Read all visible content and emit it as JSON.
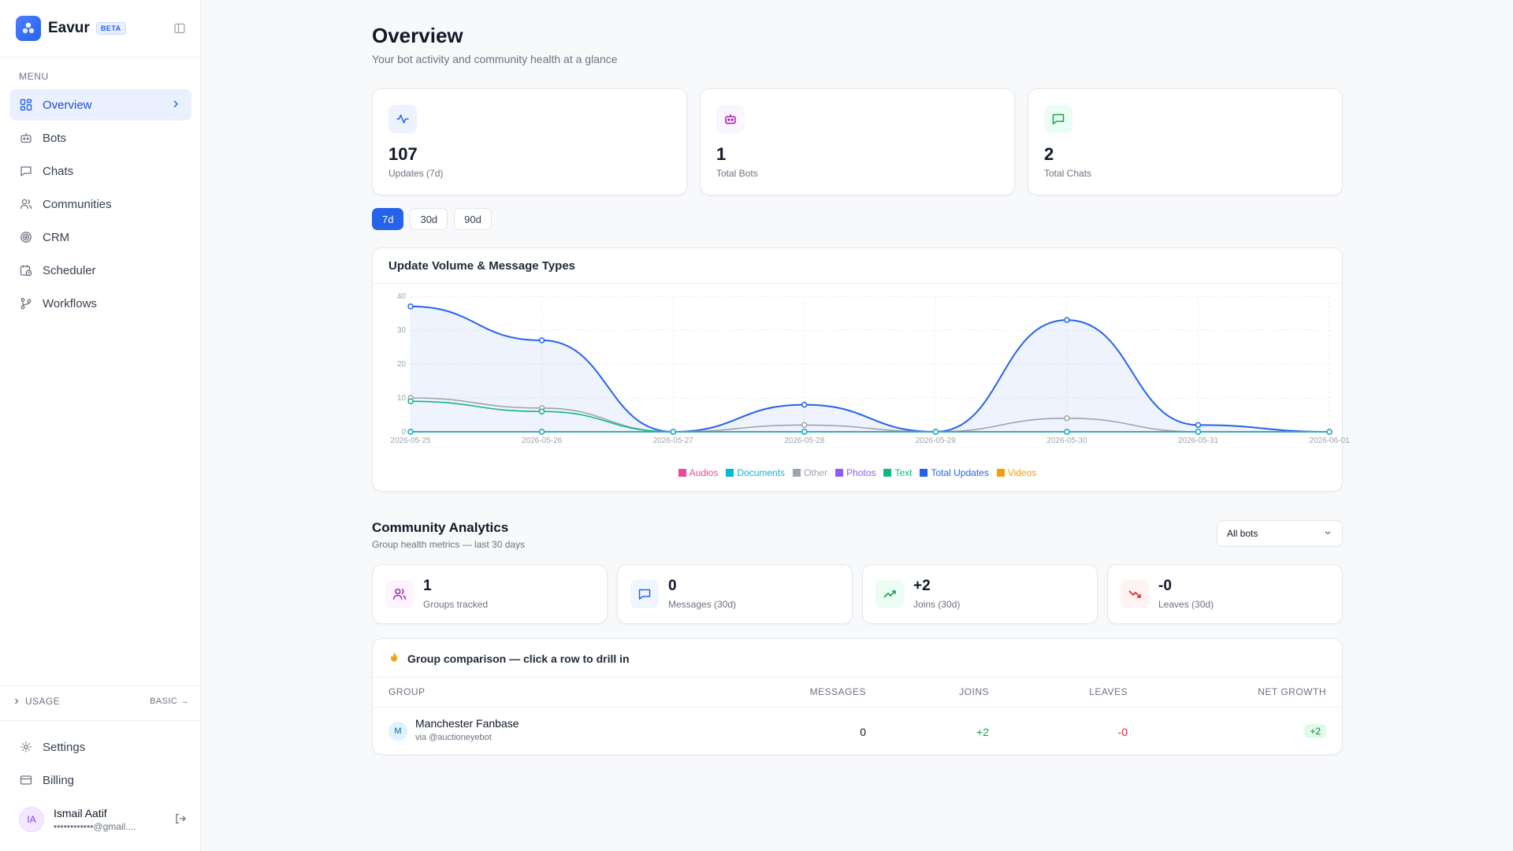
{
  "brand": {
    "name": "Eavur",
    "badge": "BETA"
  },
  "sidebar": {
    "menu_title": "MENU",
    "items": [
      {
        "label": "Overview",
        "icon": "grid-icon",
        "active": true
      },
      {
        "label": "Bots",
        "icon": "bot-icon"
      },
      {
        "label": "Chats",
        "icon": "chat-icon"
      },
      {
        "label": "Communities",
        "icon": "users-icon"
      },
      {
        "label": "CRM",
        "icon": "target-icon"
      },
      {
        "label": "Scheduler",
        "icon": "calendar-clock-icon"
      },
      {
        "label": "Workflows",
        "icon": "workflow-icon"
      }
    ],
    "usage_label": "USAGE",
    "usage_plan": "BASIC →",
    "bottom_items": [
      {
        "label": "Settings",
        "icon": "gear-icon"
      },
      {
        "label": "Billing",
        "icon": "credit-card-icon"
      }
    ],
    "user": {
      "initials": "IA",
      "name": "Ismail Aatif",
      "email": "••••••••••••@gmail...."
    }
  },
  "header": {
    "title": "Overview",
    "subtitle": "Your bot activity and community health at a glance"
  },
  "stats": [
    {
      "value": "107",
      "label": "Updates (7d)",
      "icon": "activity-icon"
    },
    {
      "value": "1",
      "label": "Total Bots",
      "icon": "bot-icon"
    },
    {
      "value": "2",
      "label": "Total Chats",
      "icon": "chat-icon"
    }
  ],
  "ranges": {
    "options": [
      "7d",
      "30d",
      "90d"
    ],
    "selected": "7d"
  },
  "chart_title": "Update Volume & Message Types",
  "chart_data": {
    "type": "line",
    "x": [
      "2026-05-25",
      "2026-05-26",
      "2026-05-27",
      "2026-05-28",
      "2026-05-29",
      "2026-05-30",
      "2026-05-31",
      "2026-06-01"
    ],
    "ylim": [
      0,
      40
    ],
    "yticks": [
      0,
      10,
      20,
      30,
      40
    ],
    "grid": true,
    "legend_position": "bottom",
    "series": [
      {
        "name": "Audios",
        "color": "#ec4899",
        "values": [
          0,
          0,
          0,
          0,
          0,
          0,
          0,
          0
        ]
      },
      {
        "name": "Documents",
        "color": "#06b6d4",
        "values": [
          0,
          0,
          0,
          0,
          0,
          0,
          0,
          0
        ]
      },
      {
        "name": "Other",
        "color": "#9ca3af",
        "values": [
          10,
          7,
          0,
          2,
          0,
          4,
          0,
          0
        ]
      },
      {
        "name": "Photos",
        "color": "#8b5cf6",
        "values": [
          0,
          0,
          0,
          0,
          0,
          0,
          0,
          0
        ]
      },
      {
        "name": "Text",
        "color": "#10b981",
        "values": [
          9,
          6,
          0,
          0,
          0,
          0,
          0,
          0
        ]
      },
      {
        "name": "Total Updates",
        "color": "#2563eb",
        "values": [
          37,
          27,
          0,
          8,
          0,
          33,
          2,
          0
        ]
      },
      {
        "name": "Videos",
        "color": "#f59e0b",
        "values": [
          0,
          0,
          0,
          0,
          0,
          0,
          0,
          0
        ]
      }
    ]
  },
  "community": {
    "title": "Community Analytics",
    "subtitle": "Group health metrics — last 30 days",
    "filter_value": "All bots",
    "metrics": [
      {
        "value": "1",
        "label": "Groups tracked",
        "icon": "users-icon",
        "bg": "#fdf4ff",
        "fg": "#a21caf"
      },
      {
        "value": "0",
        "label": "Messages (30d)",
        "icon": "chat-icon",
        "bg": "#eff6ff",
        "fg": "#2563eb"
      },
      {
        "value": "+2",
        "label": "Joins (30d)",
        "icon": "trending-up-icon",
        "bg": "#ecfdf5",
        "fg": "#16a34a"
      },
      {
        "value": "-0",
        "label": "Leaves (30d)",
        "icon": "trending-down-icon",
        "bg": "#fef2f2",
        "fg": "#dc2626"
      }
    ]
  },
  "comparison": {
    "title": "Group comparison — click a row to drill in",
    "columns": [
      "GROUP",
      "MESSAGES",
      "JOINS",
      "LEAVES",
      "NET GROWTH"
    ],
    "rows": [
      {
        "initial": "M",
        "name": "Manchester Fanbase",
        "via": "via @auctioneyebot",
        "messages": "0",
        "joins": "+2",
        "leaves": "-0",
        "net": "+2"
      }
    ]
  }
}
